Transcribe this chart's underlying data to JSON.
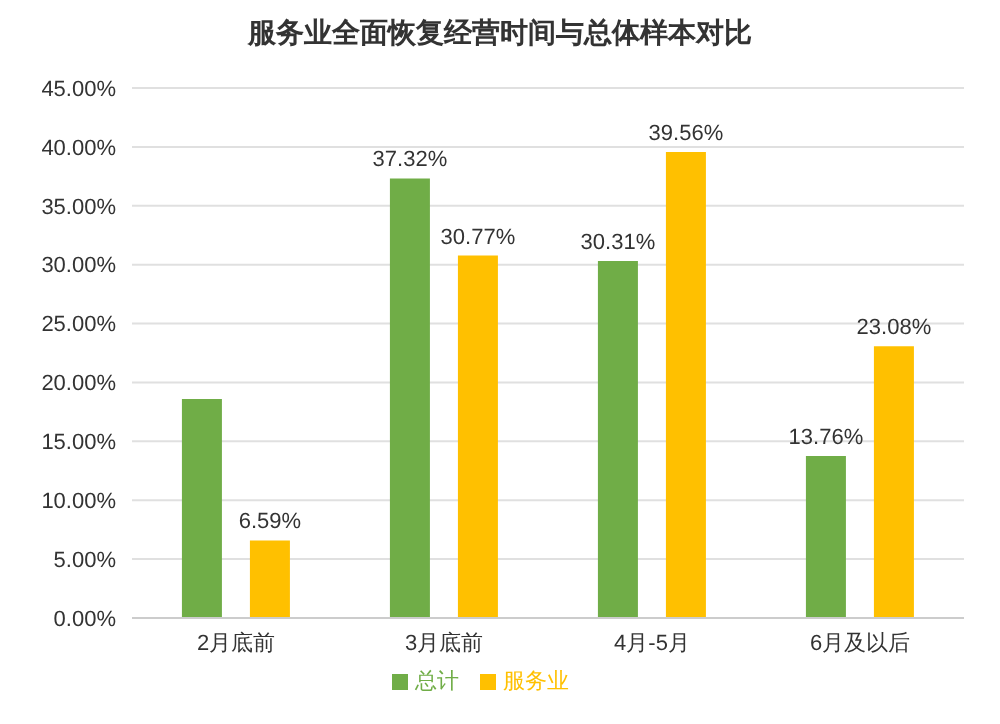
{
  "chart_data": {
    "type": "bar",
    "title": "服务业全面恢复经营时间与总体样本对比",
    "categories": [
      "2月底前",
      "3月底前",
      "4月-5月",
      "6月及以后"
    ],
    "series": [
      {
        "name": "总计",
        "color": "#70ad47",
        "values": [
          18.6,
          37.32,
          30.31,
          13.76
        ],
        "value_labels": [
          null,
          "37.32%",
          "30.31%",
          "13.76%"
        ]
      },
      {
        "name": "服务业",
        "color": "#ffc000",
        "values": [
          6.59,
          30.77,
          39.56,
          23.08
        ],
        "value_labels": [
          "6.59%",
          "30.77%",
          "39.56%",
          "23.08%"
        ]
      }
    ],
    "ylim": [
      0,
      45
    ],
    "yticks": [
      {
        "value": 0,
        "label": "0.00%"
      },
      {
        "value": 5,
        "label": "5.00%"
      },
      {
        "value": 10,
        "label": "10.00%"
      },
      {
        "value": 15,
        "label": "15.00%"
      },
      {
        "value": 20,
        "label": "20.00%"
      },
      {
        "value": 25,
        "label": "25.00%"
      },
      {
        "value": 30,
        "label": "30.00%"
      },
      {
        "value": 35,
        "label": "35.00%"
      },
      {
        "value": 40,
        "label": "40.00%"
      },
      {
        "value": 45,
        "label": "45.00%"
      }
    ],
    "grid": "y",
    "legend": "bottom"
  }
}
